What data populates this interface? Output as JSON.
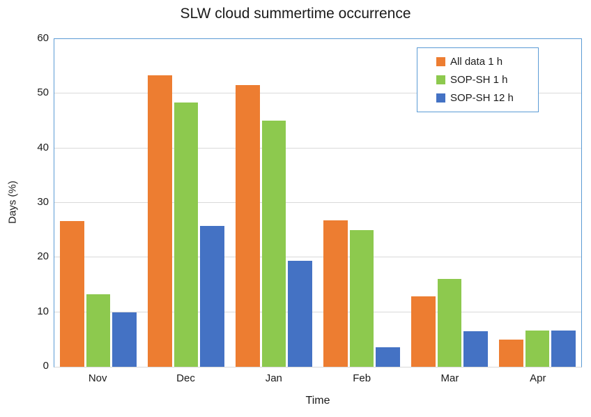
{
  "chart_data": {
    "type": "bar",
    "title": "SLW cloud summertime occurrence",
    "xlabel": "Time",
    "ylabel": "Days (%)",
    "ylim": [
      0,
      60
    ],
    "yticks": [
      0,
      10,
      20,
      30,
      40,
      50,
      60
    ],
    "categories": [
      "Nov",
      "Dec",
      "Jan",
      "Feb",
      "Mar",
      "Apr"
    ],
    "series": [
      {
        "name": "All data 1 h",
        "color": "#ED7D31",
        "values": [
          26.7,
          53.3,
          51.6,
          26.8,
          12.9,
          5.0
        ]
      },
      {
        "name": "SOP-SH 1 h",
        "color": "#8DC94E",
        "values": [
          13.3,
          48.4,
          45.1,
          25.0,
          16.1,
          6.7
        ]
      },
      {
        "name": "SOP-SH 12 h",
        "color": "#4472C4",
        "values": [
          10.0,
          25.8,
          19.4,
          3.6,
          6.5,
          6.7
        ]
      }
    ],
    "legend_position": "top-right",
    "grid": true
  },
  "colors": {
    "plot_border": "#5B9BD5",
    "gridline": "#D9D9D9",
    "text": "#1a1a1a"
  }
}
